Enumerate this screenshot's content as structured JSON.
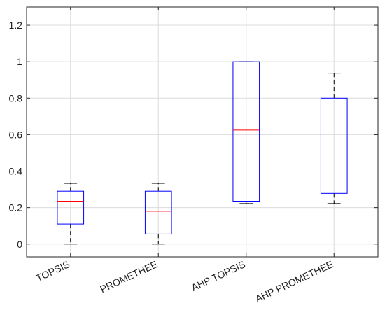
{
  "chart_data": {
    "type": "boxplot",
    "title": "",
    "xlabel": "",
    "ylabel": "",
    "ylim": [
      -0.07,
      1.3
    ],
    "yticks": [
      0,
      0.2,
      0.4,
      0.6,
      0.8,
      1,
      1.2
    ],
    "ytick_labels": [
      "0",
      "0.2",
      "0.4",
      "0.6",
      "0.8",
      "1",
      "1.2"
    ],
    "grid": true,
    "categories": [
      "TOPSIS",
      "PROMETHEE",
      "AHP TOPSIS",
      "AHP PROMETHEE"
    ],
    "boxes": [
      {
        "whisker_low": 0.0,
        "q1": 0.11,
        "median": 0.235,
        "q3": 0.29,
        "whisker_high": 0.333
      },
      {
        "whisker_low": 0.0,
        "q1": 0.055,
        "median": 0.18,
        "q3": 0.29,
        "whisker_high": 0.333
      },
      {
        "whisker_low": 0.222,
        "q1": 0.235,
        "median": 0.625,
        "q3": 1.0,
        "whisker_high": 1.0
      },
      {
        "whisker_low": 0.222,
        "q1": 0.278,
        "median": 0.5,
        "q3": 0.8,
        "whisker_high": 0.937
      }
    ],
    "colors": {
      "box": "#0000ff",
      "median": "#ff0000",
      "whisker": "#000000",
      "grid": "#dcdcdc",
      "axis": "#262626"
    }
  }
}
